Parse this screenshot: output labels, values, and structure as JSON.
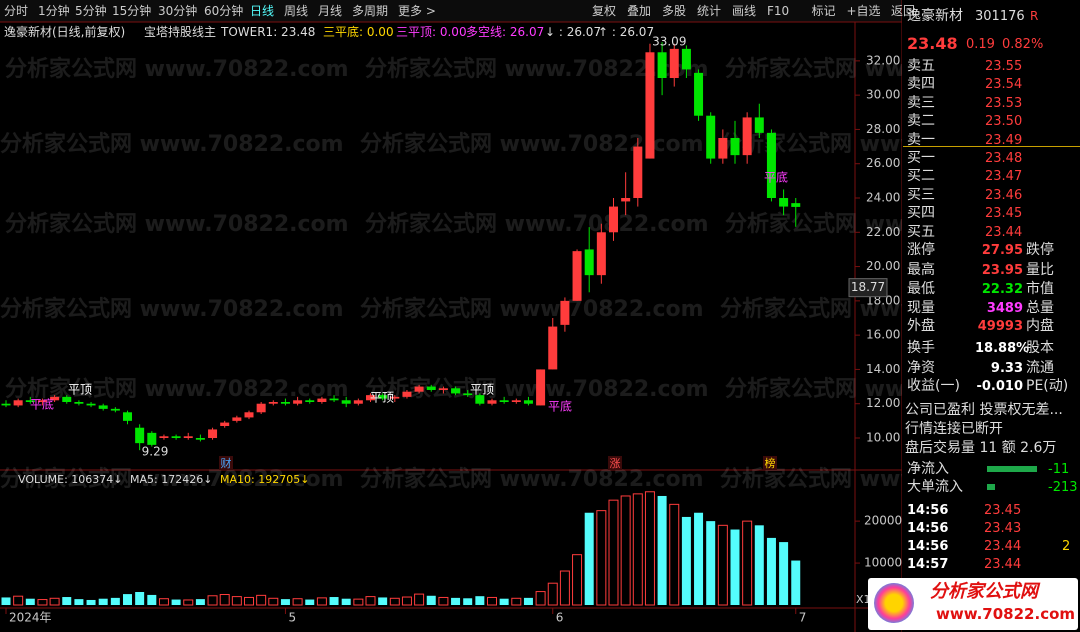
{
  "toolbar": {
    "tabs": [
      "分时",
      "1分钟",
      "5分钟",
      "15分钟",
      "30分钟",
      "60分钟",
      "日线",
      "周线",
      "月线",
      "多周期",
      "更多 >"
    ],
    "buttons": [
      "复权",
      "叠加",
      "多股",
      "统计",
      "画线",
      "F10",
      "标记",
      "+自选",
      "返回"
    ]
  },
  "indicator": {
    "title": "逸豪新材(日线,前复权)",
    "formula": "宝塔持股线主",
    "items": [
      "TOWER1: 23.48",
      "三平底: 0.00",
      "三平顶: 0.00",
      "多空线: 26.07",
      "↓ : 26.07",
      "↑ : 26.07"
    ]
  },
  "chart_data": {
    "type": "candlestick",
    "ylim": [
      8.25,
      33.8
    ],
    "yticks": [
      {
        "value": 10,
        "label": "10.00"
      },
      {
        "value": 12,
        "label": "12.00"
      },
      {
        "value": 14,
        "label": "14.00"
      },
      {
        "value": 16,
        "label": "16.00"
      },
      {
        "value": 18,
        "label": "18.00"
      },
      {
        "value": 20,
        "label": "20.00"
      },
      {
        "value": 22,
        "label": "22.00"
      },
      {
        "value": 24,
        "label": "24.00"
      },
      {
        "value": 26,
        "label": "26.00"
      },
      {
        "value": 28,
        "label": "28.00"
      },
      {
        "value": 30,
        "label": "30.00"
      },
      {
        "value": 32,
        "label": "32.00"
      }
    ],
    "xticks": [
      {
        "value": 0,
        "label": "2024年"
      },
      {
        "value": 23,
        "label": "5"
      },
      {
        "value": 45,
        "label": "6"
      },
      {
        "value": 65,
        "label": "7"
      }
    ],
    "open": [
      12.0,
      11.9,
      12.2,
      12.1,
      12.2,
      12.4,
      12.1,
      12.0,
      11.9,
      11.7,
      11.5,
      10.6,
      10.3,
      10.0,
      10.1,
      10.0,
      10.0,
      10.0,
      10.7,
      11.0,
      11.2,
      11.5,
      12.0,
      12.1,
      12.0,
      12.2,
      12.1,
      12.3,
      12.2,
      12.0,
      12.2,
      12.5,
      12.3,
      12.4,
      12.7,
      13.0,
      12.8,
      12.9,
      12.6,
      12.5,
      12.0,
      12.2,
      12.1,
      12.2,
      11.9,
      14.0,
      16.6,
      18.0,
      21.0,
      19.5,
      22.0,
      23.8,
      24.0,
      26.3,
      32.5,
      31.0,
      32.7,
      31.3,
      28.8,
      26.3,
      27.5,
      26.5,
      28.7,
      27.8,
      24.0,
      23.7
    ],
    "high": [
      12.2,
      12.3,
      12.4,
      12.3,
      12.5,
      12.5,
      12.2,
      12.1,
      12.0,
      11.8,
      11.6,
      10.8,
      10.4,
      10.2,
      10.2,
      10.3,
      10.2,
      10.6,
      11.0,
      11.3,
      11.6,
      12.1,
      12.2,
      12.3,
      12.4,
      12.3,
      12.4,
      12.5,
      12.4,
      12.3,
      12.6,
      12.6,
      12.5,
      12.8,
      13.1,
      13.1,
      13.0,
      13.0,
      12.8,
      12.6,
      12.3,
      12.4,
      12.3,
      12.4,
      14.0,
      17.0,
      18.2,
      21.0,
      22.3,
      22.5,
      24.0,
      25.5,
      27.5,
      33.0,
      33.09,
      33.0,
      32.9,
      31.5,
      29.0,
      28.0,
      28.5,
      29.0,
      29.5,
      28.0,
      24.5,
      24.0
    ],
    "low": [
      11.8,
      11.8,
      12.0,
      11.9,
      12.1,
      12.0,
      11.9,
      11.8,
      11.6,
      11.5,
      10.8,
      9.29,
      9.5,
      9.9,
      9.9,
      9.9,
      9.8,
      9.9,
      10.6,
      10.9,
      11.1,
      11.4,
      11.9,
      11.9,
      11.9,
      12.0,
      12.0,
      12.1,
      11.8,
      11.9,
      12.1,
      12.2,
      12.1,
      12.3,
      12.6,
      12.7,
      12.6,
      12.5,
      12.4,
      11.9,
      11.9,
      12.0,
      12.0,
      11.9,
      11.9,
      14.0,
      16.2,
      18.0,
      18.5,
      19.0,
      21.5,
      23.0,
      23.5,
      26.3,
      30.0,
      30.5,
      31.0,
      28.5,
      26.0,
      26.0,
      26.0,
      26.0,
      27.5,
      23.8,
      23.0,
      22.32
    ],
    "close": [
      11.9,
      12.2,
      12.1,
      12.2,
      12.4,
      12.1,
      12.0,
      11.9,
      11.7,
      11.6,
      11.0,
      9.7,
      9.6,
      10.1,
      10.0,
      10.1,
      9.9,
      10.5,
      10.9,
      11.2,
      11.5,
      12.0,
      12.1,
      12.0,
      12.2,
      12.1,
      12.3,
      12.2,
      12.0,
      12.2,
      12.5,
      12.3,
      12.4,
      12.7,
      13.0,
      12.8,
      12.9,
      12.6,
      12.5,
      12.0,
      12.2,
      12.1,
      12.2,
      12.0,
      14.0,
      16.5,
      18.0,
      20.9,
      19.5,
      22.0,
      23.5,
      24.0,
      27.0,
      32.5,
      31.0,
      32.7,
      31.5,
      28.8,
      26.3,
      27.5,
      26.5,
      28.7,
      27.8,
      24.0,
      23.5,
      23.48
    ],
    "annotations": [
      "平底",
      "平顶",
      "平顶",
      "平顶",
      "平底",
      "平底"
    ],
    "markers": [
      "财",
      "涨",
      "榜"
    ],
    "cursor": 18.77
  },
  "volume_chart": {
    "type": "bar",
    "header": [
      "VOLUME: 106374↓",
      "MA5: 172426↓",
      "MA10: 192705↓"
    ],
    "ylim": [
      0,
      31000
    ],
    "yticks": [
      10000,
      20000
    ],
    "multiplier": "X1",
    "values": [
      1800,
      2100,
      1500,
      1300,
      1600,
      1900,
      1400,
      1200,
      1500,
      1700,
      2600,
      3100,
      2400,
      1500,
      1300,
      1200,
      1400,
      2200,
      2500,
      2000,
      1800,
      2300,
      1600,
      1400,
      1500,
      1300,
      1700,
      1900,
      1500,
      1400,
      2000,
      1800,
      1600,
      1900,
      2600,
      2200,
      1800,
      1700,
      1600,
      2100,
      1800,
      1500,
      1600,
      1700,
      3200,
      5200,
      8100,
      12000,
      22000,
      22500,
      25000,
      26000,
      26500,
      27000,
      26000,
      24000,
      21000,
      22000,
      20000,
      19000,
      18000,
      20000,
      19000,
      16000,
      15000,
      10600
    ]
  },
  "watermark": "分析家公式网 www.70822.com",
  "quote": {
    "name": "逸豪新材",
    "code": "301176",
    "flag": "R",
    "price": "23.48",
    "change": "0.19",
    "pct": "0.82%",
    "sell": [
      [
        "卖五",
        "23.55"
      ],
      [
        "卖四",
        "23.54"
      ],
      [
        "卖三",
        "23.53"
      ],
      [
        "卖二",
        "23.50"
      ],
      [
        "卖一",
        "23.49"
      ]
    ],
    "buy": [
      [
        "买一",
        "23.48"
      ],
      [
        "买二",
        "23.47"
      ],
      [
        "买三",
        "23.46"
      ],
      [
        "买四",
        "23.45"
      ],
      [
        "买五",
        "23.44"
      ]
    ],
    "stats": [
      [
        "涨停",
        "27.95",
        "跌停"
      ],
      [
        "最高",
        "23.95",
        "量比"
      ],
      [
        "最低",
        "22.32",
        "市值"
      ],
      [
        "现量",
        "3489",
        "总量"
      ],
      [
        "外盘",
        "49993",
        "内盘"
      ],
      [
        "换手",
        "18.88%",
        "股本"
      ],
      [
        "净资",
        "9.33",
        "流通"
      ],
      [
        "收益(一)",
        "-0.010",
        "PE(动)"
      ]
    ],
    "notes": [
      "公司已盈利 投票权无差...",
      "行情连接已断开",
      "盘后交易量 11 额 2.6万"
    ],
    "flows": [
      [
        "净流入",
        "-11"
      ],
      [
        "大单流入",
        "-213"
      ]
    ],
    "ticks": [
      [
        "14:56",
        "23.45",
        ""
      ],
      [
        "14:56",
        "23.43",
        ""
      ],
      [
        "14:56",
        "23.44",
        "2"
      ],
      [
        "14:57",
        "23.44",
        ""
      ]
    ]
  },
  "logo": {
    "name": "分析家公式网",
    "url": "www.70822.com"
  }
}
